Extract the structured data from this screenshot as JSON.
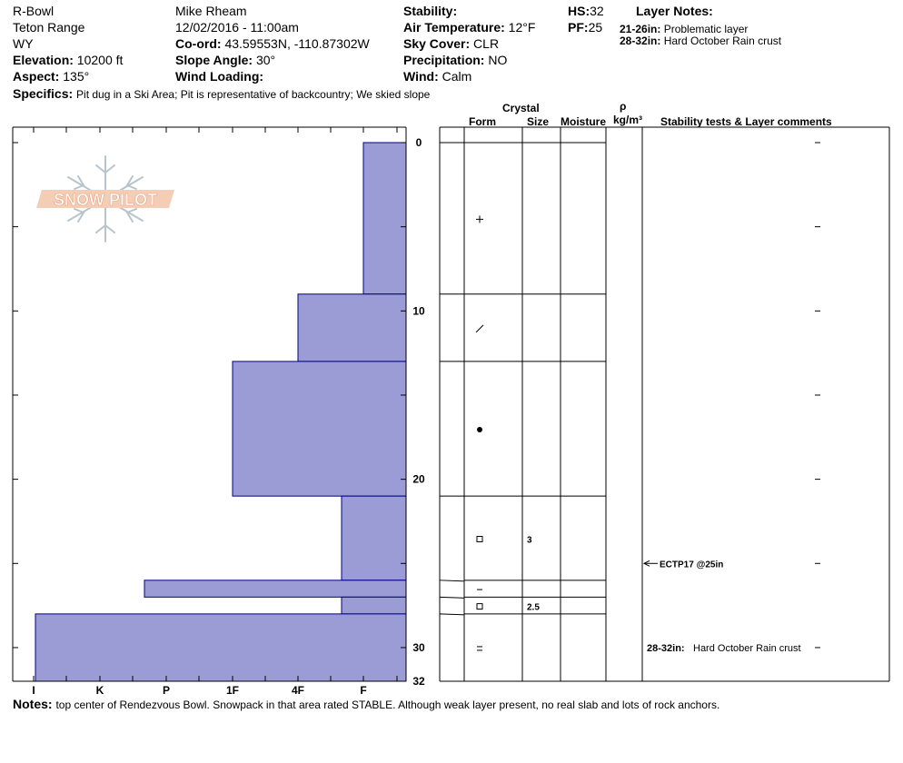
{
  "header": {
    "location": "R-Bowl",
    "range": "Teton Range",
    "state": "WY",
    "elevation_label": "Elevation:",
    "elevation": "10200 ft",
    "aspect_label": "Aspect:",
    "aspect": "135°",
    "observer": "Mike Rheam",
    "datetime": "12/02/2016 - 11:00am",
    "coord_label": "Co-ord:",
    "coord": "43.59553N, -110.87302W",
    "slope_label": "Slope Angle:",
    "slope": "30°",
    "wind_loading_label": "Wind Loading:",
    "wind_loading": "",
    "stability_label": "Stability:",
    "stability": "",
    "air_temp_label": "Air Temperature:",
    "air_temp": "12°F",
    "sky_label": "Sky Cover:",
    "sky": "CLR",
    "precip_label": "Precipitation:",
    "precip": "NO",
    "wind_label": "Wind:",
    "wind": "Calm",
    "hs_label": "HS:",
    "hs": "32",
    "pf_label": "PF:",
    "pf": "25",
    "layer_notes_title": "Layer Notes:",
    "layer_notes": [
      {
        "range": "21-26in:",
        "text": "Problematic layer"
      },
      {
        "range": "28-32in:",
        "text": "Hard October Rain crust"
      }
    ],
    "specifics_label": "Specifics:",
    "specifics": "Pit dug in a Ski Area;  Pit is representative of backcountry;  We skied slope"
  },
  "logo": {
    "text": "SNOW PILOT"
  },
  "table_headers": {
    "crystal": "Crystal",
    "form": "Form",
    "size": "Size",
    "moisture": "Moisture",
    "rho": "ρ",
    "density_unit": "kg/m³",
    "comments": "Stability tests & Layer comments"
  },
  "colors": {
    "layer_fill": "#9b9bd6",
    "layer_stroke": "#000080"
  },
  "chart_data": {
    "type": "bar",
    "orientation": "horizontal",
    "title": "",
    "xlabel": "",
    "ylabel": "",
    "x_categories": [
      "I",
      "K",
      "P",
      "1F",
      "4F",
      "F"
    ],
    "y_ticks": [
      0,
      10,
      20,
      30,
      32
    ],
    "ylim": [
      0,
      32
    ],
    "y_unit": "in",
    "layers": [
      {
        "top": 0,
        "bottom": 9,
        "hardness": "F"
      },
      {
        "top": 9,
        "bottom": 13,
        "hardness": "4F"
      },
      {
        "top": 13,
        "bottom": 21,
        "hardness": "1F"
      },
      {
        "top": 21,
        "bottom": 26,
        "hardness": "F+"
      },
      {
        "top": 26,
        "bottom": 27,
        "hardness": "P+"
      },
      {
        "top": 27,
        "bottom": 28,
        "hardness": "F+"
      },
      {
        "top": 28,
        "bottom": 32,
        "hardness": "I-"
      }
    ],
    "crystal_rows": [
      {
        "form": "+",
        "size": ""
      },
      {
        "form": "/",
        "size": ""
      },
      {
        "form": "●",
        "size": ""
      },
      {
        "form": "□",
        "size": "3"
      },
      {
        "form": "−",
        "size": ""
      },
      {
        "form": "□",
        "size": "2.5"
      },
      {
        "form": "=",
        "size": ""
      }
    ],
    "stability_tests": [
      {
        "depth": 25,
        "label": "ECTP17 @25in"
      }
    ],
    "layer_comments": [
      {
        "depth": 30,
        "range": "28-32in:",
        "text": "Hard October Rain crust"
      }
    ]
  },
  "notes_label": "Notes:",
  "notes": "top center of Rendezvous Bowl.  Snowpack in that area rated STABLE.  Although weak layer present, no real slab and lots of rock anchors."
}
